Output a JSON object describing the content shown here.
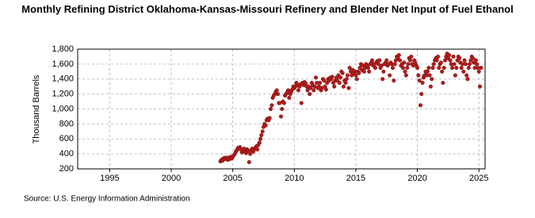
{
  "chart_data": {
    "type": "scatter",
    "title": "Monthly Refining District Oklahoma-Kansas-Missouri Refinery and Blender Net Input of Fuel Ethanol",
    "y_label": "Thousand Barrels",
    "source": "Source: U.S. Energy Information Administration",
    "xlim": [
      1992.4,
      2025.5
    ],
    "xticks": [
      1995,
      2000,
      2005,
      2010,
      2015,
      2020,
      2025
    ],
    "ylim": [
      200,
      1800
    ],
    "yticks": [
      200,
      400,
      600,
      800,
      {
        "value": 1000,
        "label": "1,000"
      },
      {
        "value": 1200,
        "label": "1,200"
      },
      {
        "value": 1400,
        "label": "1,400"
      },
      {
        "value": 1600,
        "label": "1,600"
      },
      {
        "value": 1800,
        "label": "1,800"
      }
    ],
    "grid": true,
    "color": "#b01c1c",
    "x": [
      2004.0,
      2004.08,
      2004.17,
      2004.25,
      2004.33,
      2004.42,
      2004.5,
      2004.58,
      2004.67,
      2004.75,
      2004.83,
      2004.92,
      2005.0,
      2005.08,
      2005.17,
      2005.25,
      2005.33,
      2005.42,
      2005.5,
      2005.58,
      2005.67,
      2005.75,
      2005.83,
      2005.92,
      2006.0,
      2006.08,
      2006.17,
      2006.25,
      2006.33,
      2006.42,
      2006.5,
      2006.58,
      2006.67,
      2006.75,
      2006.83,
      2006.92,
      2007.0,
      2007.08,
      2007.17,
      2007.25,
      2007.33,
      2007.42,
      2007.5,
      2007.58,
      2007.67,
      2007.75,
      2007.83,
      2007.92,
      2008.0,
      2008.08,
      2008.17,
      2008.25,
      2008.33,
      2008.42,
      2008.5,
      2008.58,
      2008.67,
      2008.75,
      2008.83,
      2008.92,
      2009.0,
      2009.08,
      2009.17,
      2009.25,
      2009.33,
      2009.42,
      2009.5,
      2009.58,
      2009.67,
      2009.75,
      2009.83,
      2009.92,
      2010.0,
      2010.08,
      2010.17,
      2010.25,
      2010.33,
      2010.42,
      2010.5,
      2010.58,
      2010.67,
      2010.75,
      2010.83,
      2010.92,
      2011.0,
      2011.08,
      2011.17,
      2011.25,
      2011.33,
      2011.42,
      2011.5,
      2011.58,
      2011.67,
      2011.75,
      2011.83,
      2011.92,
      2012.0,
      2012.08,
      2012.17,
      2012.25,
      2012.33,
      2012.42,
      2012.5,
      2012.58,
      2012.67,
      2012.75,
      2012.83,
      2012.92,
      2013.0,
      2013.08,
      2013.17,
      2013.25,
      2013.33,
      2013.42,
      2013.5,
      2013.58,
      2013.67,
      2013.75,
      2013.83,
      2013.92,
      2014.0,
      2014.08,
      2014.17,
      2014.25,
      2014.33,
      2014.42,
      2014.5,
      2014.58,
      2014.67,
      2014.75,
      2014.83,
      2014.92,
      2015.0,
      2015.08,
      2015.17,
      2015.25,
      2015.33,
      2015.42,
      2015.5,
      2015.58,
      2015.67,
      2015.75,
      2015.83,
      2015.92,
      2016.0,
      2016.08,
      2016.17,
      2016.25,
      2016.33,
      2016.42,
      2016.5,
      2016.58,
      2016.67,
      2016.75,
      2016.83,
      2016.92,
      2017.0,
      2017.08,
      2017.17,
      2017.25,
      2017.33,
      2017.42,
      2017.5,
      2017.58,
      2017.67,
      2017.75,
      2017.83,
      2017.92,
      2018.0,
      2018.08,
      2018.17,
      2018.25,
      2018.33,
      2018.42,
      2018.5,
      2018.58,
      2018.67,
      2018.75,
      2018.83,
      2018.92,
      2019.0,
      2019.08,
      2019.17,
      2019.25,
      2019.33,
      2019.42,
      2019.5,
      2019.58,
      2019.67,
      2019.75,
      2019.83,
      2019.92,
      2020.0,
      2020.08,
      2020.17,
      2020.25,
      2020.33,
      2020.42,
      2020.5,
      2020.58,
      2020.67,
      2020.75,
      2020.83,
      2020.92,
      2021.0,
      2021.08,
      2021.17,
      2021.25,
      2021.33,
      2021.42,
      2021.5,
      2021.58,
      2021.67,
      2021.75,
      2021.83,
      2021.92,
      2022.0,
      2022.08,
      2022.17,
      2022.25,
      2022.33,
      2022.42,
      2022.5,
      2022.58,
      2022.67,
      2022.75,
      2022.83,
      2022.92,
      2023.0,
      2023.08,
      2023.17,
      2023.25,
      2023.33,
      2023.42,
      2023.5,
      2023.58,
      2023.67,
      2023.75,
      2023.83,
      2023.92,
      2024.0,
      2024.08,
      2024.17,
      2024.25,
      2024.33,
      2024.42,
      2024.5,
      2024.58,
      2024.67,
      2024.75,
      2024.83,
      2024.92,
      2025.0,
      2025.08,
      2025.17
    ],
    "values": [
      300,
      320,
      310,
      340,
      330,
      350,
      340,
      320,
      350,
      330,
      360,
      340,
      360,
      380,
      400,
      430,
      450,
      480,
      470,
      490,
      460,
      420,
      440,
      470,
      430,
      410,
      460,
      440,
      290,
      400,
      450,
      470,
      430,
      460,
      480,
      500,
      460,
      520,
      550,
      600,
      650,
      700,
      760,
      800,
      780,
      850,
      870,
      850,
      880,
      1000,
      1050,
      1150,
      1180,
      1200,
      1230,
      1250,
      1200,
      1080,
      1080,
      900,
      1000,
      1100,
      1080,
      1180,
      1200,
      1220,
      1250,
      1150,
      1200,
      1230,
      1260,
      1300,
      1280,
      1300,
      1350,
      1320,
      1250,
      1300,
      1330,
      1080,
      1350,
      1320,
      1360,
      1340,
      1300,
      1250,
      1300,
      1200,
      1280,
      1350,
      1320,
      1250,
      1300,
      1420,
      1350,
      1280,
      1300,
      1350,
      1250,
      1280,
      1400,
      1380,
      1300,
      1260,
      1350,
      1400,
      1380,
      1420,
      1400,
      1430,
      1350,
      1300,
      1380,
      1420,
      1380,
      1450,
      1350,
      1420,
      1500,
      1480,
      1300,
      1380,
      1350,
      1400,
      1450,
      1280,
      1550,
      1500,
      1450,
      1520,
      1480,
      1500,
      1450,
      1400,
      1500,
      1480,
      1550,
      1600,
      1520,
      1580,
      1500,
      1550,
      1600,
      1580,
      1550,
      1500,
      1600,
      1620,
      1650,
      1580,
      1600,
      1550,
      1620,
      1640,
      1600,
      1650,
      1550,
      1580,
      1400,
      1500,
      1600,
      1620,
      1650,
      1580,
      1600,
      1450,
      1620,
      1600,
      1550,
      1380,
      1600,
      1650,
      1700,
      1680,
      1720,
      1650,
      1580,
      1600,
      1550,
      1620,
      1500,
      1450,
      1550,
      1600,
      1680,
      1650,
      1700,
      1600,
      1580,
      1650,
      1620,
      1580,
      1550,
      1450,
      1380,
      1050,
      1200,
      1350,
      1420,
      1450,
      1500,
      1450,
      1500,
      1550,
      1450,
      1300,
      1400,
      1550,
      1600,
      1650,
      1680,
      1650,
      1700,
      1550,
      1600,
      1620,
      1500,
      1350,
      1550,
      1650,
      1700,
      1740,
      1680,
      1720,
      1650,
      1600,
      1550,
      1700,
      1600,
      1450,
      1550,
      1650,
      1700,
      1680,
      1620,
      1550,
      1600,
      1500,
      1650,
      1600,
      1450,
      1400,
      1550,
      1600,
      1650,
      1700,
      1680,
      1620,
      1550,
      1650,
      1600,
      1550,
      1500,
      1300,
      1550
    ]
  }
}
